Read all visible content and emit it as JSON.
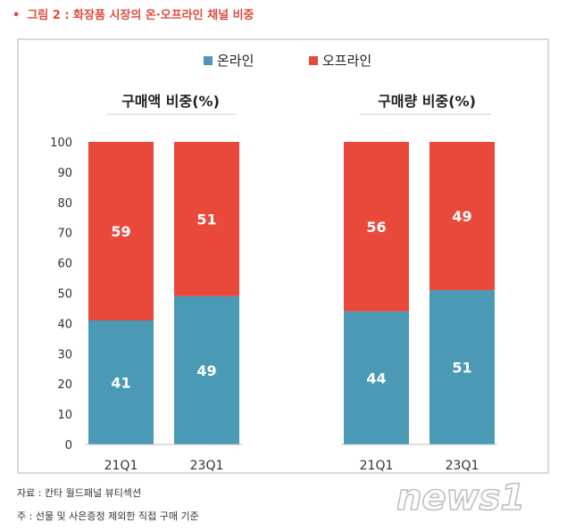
{
  "figure_title": "그림 2 : 화장품 시장의 온·오프라인 채널 비중",
  "bullet": "•",
  "source_note": "자료 : 칸타 월드패널 뷰티섹션",
  "footnote": "주 : 선물 및 사은증정 제외한 직접 구매 기준",
  "watermark_text": "news1",
  "colors": {
    "online": "#4a9ab5",
    "offline": "#e8493b",
    "title": "#e04b3c"
  },
  "chart_data": {
    "type": "bar",
    "stacked": true,
    "legend": {
      "position": "top-center",
      "entries": [
        "온라인",
        "오프라인"
      ]
    },
    "ylim": [
      0,
      100
    ],
    "yticks": [
      0,
      10,
      20,
      30,
      40,
      50,
      60,
      70,
      80,
      90,
      100
    ],
    "grid": false,
    "panels": [
      {
        "title": "구매액 비중(%)",
        "categories": [
          "21Q1",
          "23Q1"
        ],
        "series": [
          {
            "name": "온라인",
            "values": [
              41,
              49
            ]
          },
          {
            "name": "오프라인",
            "values": [
              59,
              51
            ]
          }
        ]
      },
      {
        "title": "구매량 비중(%)",
        "categories": [
          "21Q1",
          "23Q1"
        ],
        "series": [
          {
            "name": "온라인",
            "values": [
              44,
              51
            ]
          },
          {
            "name": "오프라인",
            "values": [
              56,
              49
            ]
          }
        ]
      }
    ]
  }
}
